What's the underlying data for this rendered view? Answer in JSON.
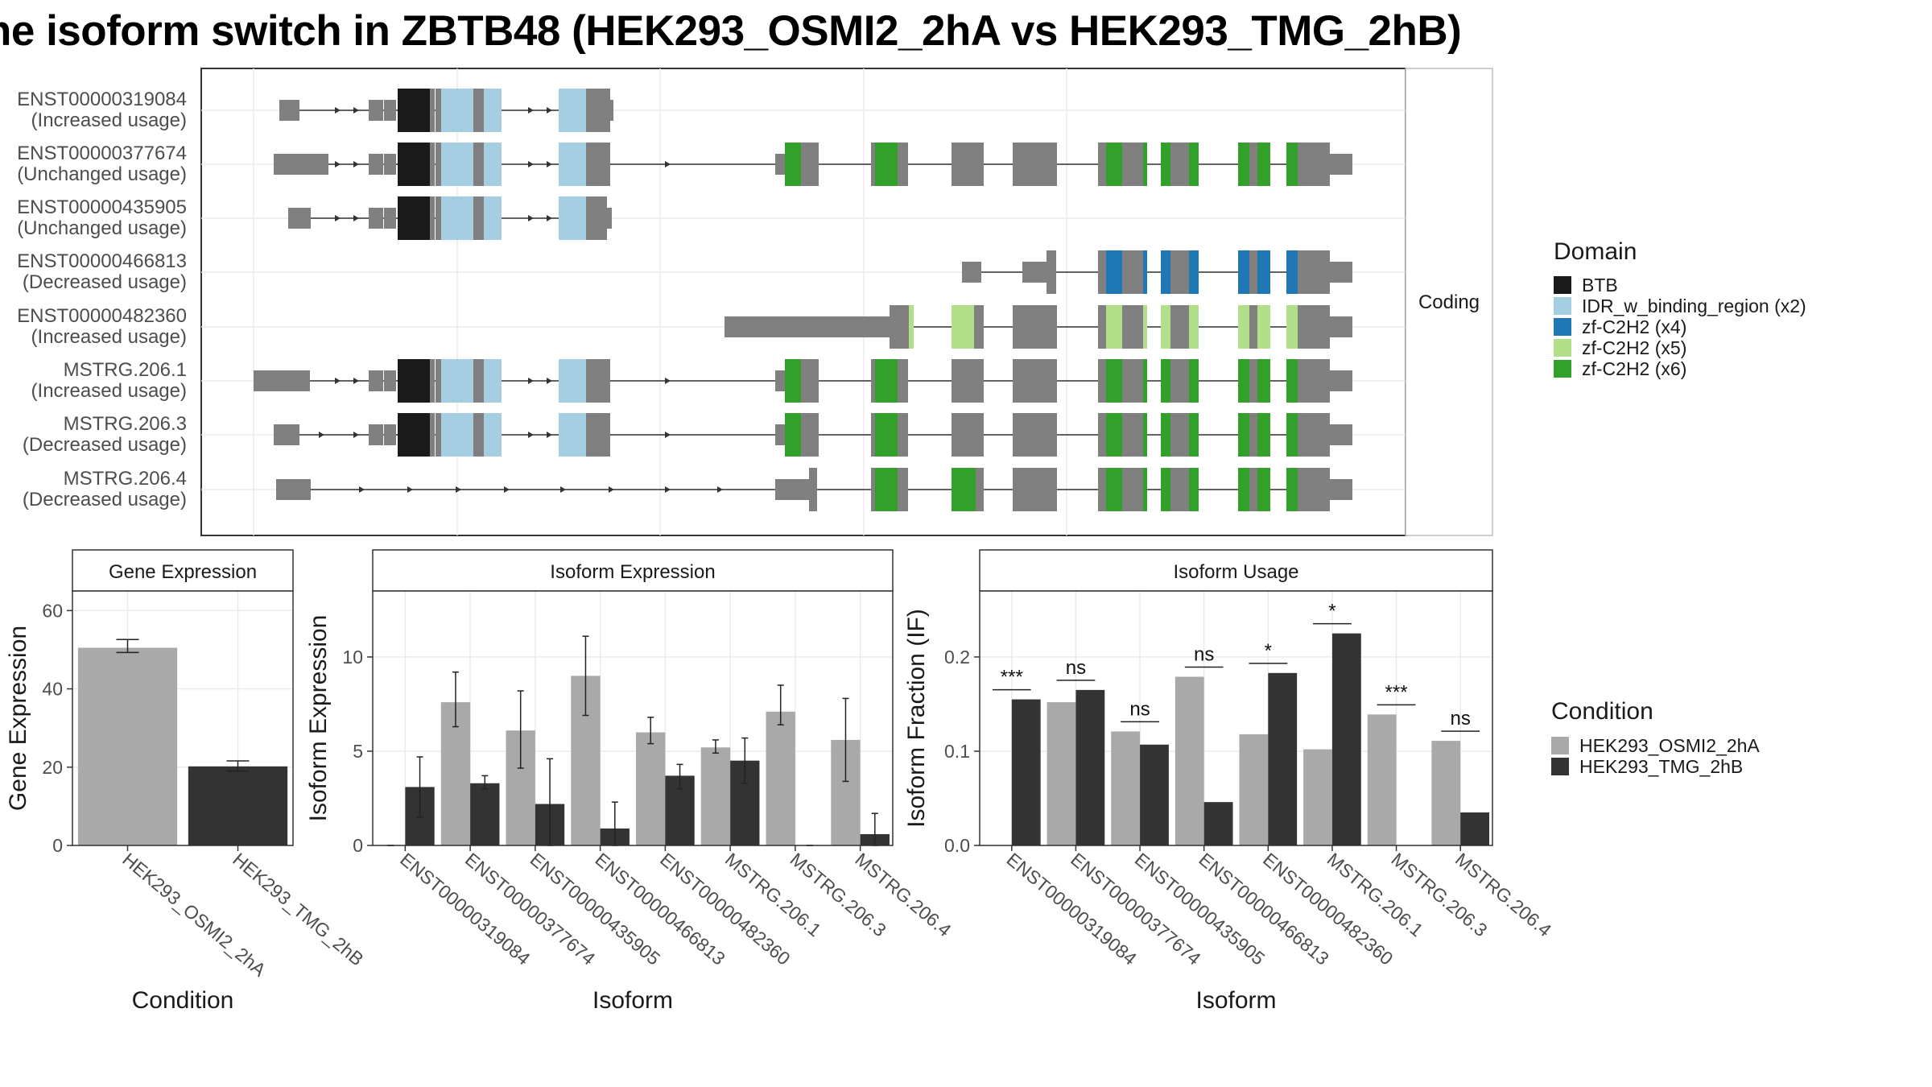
{
  "title": "he isoform switch in ZBTB48 (HEK293_OSMI2_2hA vs HEK293_TMG_2hB)",
  "colors": {
    "exon": "#808080",
    "cond_a": "#A9A9A9",
    "cond_b": "#333333",
    "domain_BTB": "#1A1A1A",
    "domain_IDR": "#A6CEE3",
    "domain_zf4": "#1F78B4",
    "domain_zf5": "#B2DF8A",
    "domain_zf6": "#33A02C"
  },
  "structure_panel": {
    "strip_label": "Coding",
    "isoforms": [
      {
        "id": "ENST00000319084",
        "usage": "(Increased usage)"
      },
      {
        "id": "ENST00000377674",
        "usage": "(Unchanged usage)"
      },
      {
        "id": "ENST00000435905",
        "usage": "(Unchanged usage)"
      },
      {
        "id": "ENST00000466813",
        "usage": "(Decreased usage)"
      },
      {
        "id": "ENST00000482360",
        "usage": "(Increased usage)"
      },
      {
        "id": "MSTRG.206.1",
        "usage": "(Increased usage)"
      },
      {
        "id": "MSTRG.206.3",
        "usage": "(Decreased usage)"
      },
      {
        "id": "MSTRG.206.4",
        "usage": "(Decreased usage)"
      }
    ]
  },
  "legend_domain": {
    "title": "Domain",
    "items": [
      {
        "label": "BTB",
        "color": "#1A1A1A"
      },
      {
        "label": "IDR_w_binding_region (x2)",
        "color": "#A6CEE3"
      },
      {
        "label": "zf-C2H2 (x4)",
        "color": "#1F78B4"
      },
      {
        "label": "zf-C2H2 (x5)",
        "color": "#B2DF8A"
      },
      {
        "label": "zf-C2H2 (x6)",
        "color": "#33A02C"
      }
    ]
  },
  "legend_condition": {
    "title": "Condition",
    "items": [
      {
        "label": "HEK293_OSMI2_2hA",
        "color": "#A9A9A9"
      },
      {
        "label": "HEK293_TMG_2hB",
        "color": "#333333"
      }
    ]
  },
  "chart_data": [
    {
      "type": "bar",
      "title": "Gene Expression",
      "xlabel": "Condition",
      "ylabel": "Gene Expression",
      "ylim": [
        0,
        65
      ],
      "yticks": [
        0,
        20,
        40,
        60
      ],
      "categories": [
        "HEK293_OSMI2_2hA",
        "HEK293_TMG_2hB"
      ],
      "values": [
        50.5,
        20.2
      ],
      "errors": [
        [
          49.3,
          52.6
        ],
        [
          19.0,
          21.6
        ]
      ]
    },
    {
      "type": "bar",
      "title": "Isoform Expression",
      "xlabel": "Isoform",
      "ylabel": "Isoform Expression",
      "ylim": [
        0,
        13.5
      ],
      "yticks": [
        0,
        5,
        10
      ],
      "categories": [
        "ENST00000319084",
        "ENST00000377674",
        "ENST00000435905",
        "ENST00000466813",
        "ENST00000482360",
        "MSTRG.206.1",
        "MSTRG.206.3",
        "MSTRG.206.4"
      ],
      "series": [
        {
          "name": "HEK293_OSMI2_2hA",
          "values": [
            0.0,
            7.6,
            6.1,
            9.0,
            6.0,
            5.2,
            7.1,
            5.6
          ],
          "errors": [
            [
              0.0,
              0.0
            ],
            [
              6.3,
              9.2
            ],
            [
              4.1,
              8.2
            ],
            [
              6.9,
              11.1
            ],
            [
              5.4,
              6.8
            ],
            [
              4.9,
              5.6
            ],
            [
              6.4,
              8.5
            ],
            [
              3.4,
              7.8
            ]
          ]
        },
        {
          "name": "HEK293_TMG_2hB",
          "values": [
            3.1,
            3.3,
            2.2,
            0.9,
            3.7,
            4.5,
            0.0,
            0.6
          ],
          "errors": [
            [
              1.5,
              4.7
            ],
            [
              3.0,
              3.7
            ],
            [
              0.0,
              4.6
            ],
            [
              0.0,
              2.3
            ],
            [
              3.0,
              4.3
            ],
            [
              3.3,
              5.7
            ],
            [
              0.0,
              0.0
            ],
            [
              0.0,
              1.7
            ]
          ]
        }
      ]
    },
    {
      "type": "bar",
      "title": "Isoform Usage",
      "xlabel": "Isoform",
      "ylabel": "Isoform Fraction (IF)",
      "ylim": [
        0,
        0.27
      ],
      "yticks": [
        0.0,
        0.1,
        0.2
      ],
      "ytick_labels": [
        "0.0",
        "0.1",
        "0.2"
      ],
      "categories": [
        "ENST00000319084",
        "ENST00000377674",
        "ENST00000435905",
        "ENST00000466813",
        "ENST00000482360",
        "MSTRG.206.1",
        "MSTRG.206.3",
        "MSTRG.206.4"
      ],
      "series": [
        {
          "name": "HEK293_OSMI2_2hA",
          "values": [
            0.0,
            0.152,
            0.121,
            0.179,
            0.118,
            0.102,
            0.139,
            0.111
          ]
        },
        {
          "name": "HEK293_TMG_2hB",
          "values": [
            0.155,
            0.165,
            0.107,
            0.046,
            0.183,
            0.225,
            0.0,
            0.035
          ]
        }
      ],
      "significance": [
        "***",
        "ns",
        "ns",
        "ns",
        "*",
        "*",
        "***",
        "ns"
      ]
    }
  ]
}
